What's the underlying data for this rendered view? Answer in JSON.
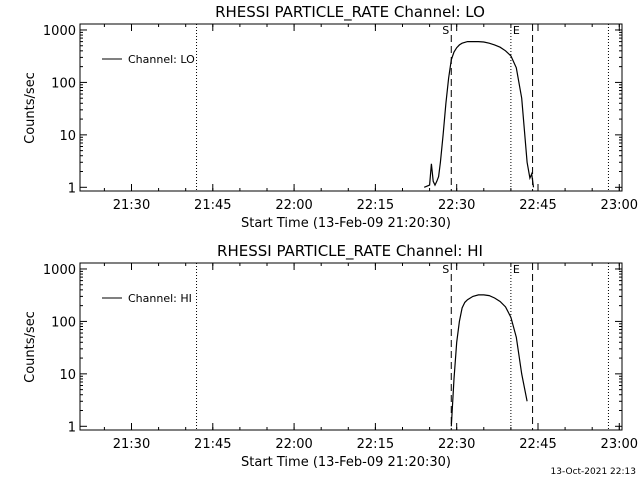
{
  "footer": {
    "timestamp": "13-Oct-2021 22:13"
  },
  "chart_data": [
    {
      "type": "line",
      "title": "RHESSI PARTICLE_RATE Channel: LO",
      "xlabel": "Start Time (13-Feb-09 21:20:30)",
      "ylabel": "Counts/sec",
      "y_scale": "log",
      "ylim": [
        0.85,
        1300
      ],
      "xlim": [
        "21:20:30",
        "23:00:30"
      ],
      "x_ticks": [
        "21:30",
        "21:45",
        "22:00",
        "22:15",
        "22:30",
        "22:45",
        "23:00"
      ],
      "y_ticks": [
        "1",
        "10",
        "100",
        "1000"
      ],
      "legend": {
        "position": "top-left",
        "entries": [
          "Channel: LO"
        ]
      },
      "markers": [
        {
          "label": "S",
          "time": "22:29:00",
          "style": "dashed"
        },
        {
          "label": "E",
          "time": "22:40:00",
          "style": "dotted"
        }
      ],
      "extra_lines": [
        {
          "time": "21:42:00",
          "style": "dotted"
        },
        {
          "time": "22:44:00",
          "style": "dashed"
        },
        {
          "time": "22:58:00",
          "style": "dotted"
        }
      ],
      "series": [
        {
          "name": "Channel: LO",
          "x": [
            "22:24:00",
            "22:25:00",
            "22:25:20",
            "22:25:40",
            "22:26:00",
            "22:26:20",
            "22:26:40",
            "22:27:00",
            "22:27:30",
            "22:28:00",
            "22:28:30",
            "22:29:00",
            "22:29:30",
            "22:30:00",
            "22:30:30",
            "22:31:00",
            "22:32:00",
            "22:33:00",
            "22:34:00",
            "22:35:00",
            "22:36:00",
            "22:37:00",
            "22:38:00",
            "22:39:00",
            "22:40:00",
            "22:41:00",
            "22:42:00",
            "22:43:00",
            "22:43:30",
            "22:43:50",
            "22:44:10"
          ],
          "y": [
            1,
            1.1,
            2.8,
            1.3,
            1.1,
            1.3,
            1.6,
            3,
            10,
            40,
            120,
            270,
            380,
            460,
            520,
            560,
            600,
            600,
            600,
            590,
            560,
            520,
            470,
            400,
            320,
            190,
            50,
            3,
            1.5,
            1.8,
            1
          ]
        }
      ]
    },
    {
      "type": "line",
      "title": "RHESSI PARTICLE_RATE Channel: HI",
      "xlabel": "Start Time (13-Feb-09 21:20:30)",
      "ylabel": "Counts/sec",
      "y_scale": "log",
      "ylim": [
        0.85,
        1300
      ],
      "xlim": [
        "21:20:30",
        "23:00:30"
      ],
      "x_ticks": [
        "21:30",
        "21:45",
        "22:00",
        "22:15",
        "22:30",
        "22:45",
        "23:00"
      ],
      "y_ticks": [
        "1",
        "10",
        "100",
        "1000"
      ],
      "legend": {
        "position": "top-left",
        "entries": [
          "Channel: HI"
        ]
      },
      "markers": [
        {
          "label": "S",
          "time": "22:29:00",
          "style": "dashed"
        },
        {
          "label": "E",
          "time": "22:40:00",
          "style": "dotted"
        }
      ],
      "extra_lines": [
        {
          "time": "21:42:00",
          "style": "dotted"
        },
        {
          "time": "22:44:00",
          "style": "dashed"
        },
        {
          "time": "22:58:00",
          "style": "dotted"
        }
      ],
      "series": [
        {
          "name": "Channel: HI",
          "x": [
            "22:29:00",
            "22:29:30",
            "22:30:00",
            "22:30:30",
            "22:31:00",
            "22:31:30",
            "22:32:00",
            "22:33:00",
            "22:34:00",
            "22:35:00",
            "22:36:00",
            "22:37:00",
            "22:38:00",
            "22:39:00",
            "22:40:00",
            "22:41:00",
            "22:42:00",
            "22:43:00"
          ],
          "y": [
            1,
            8,
            40,
            100,
            180,
            230,
            260,
            300,
            320,
            320,
            310,
            280,
            240,
            190,
            120,
            50,
            10,
            3
          ]
        }
      ]
    }
  ]
}
